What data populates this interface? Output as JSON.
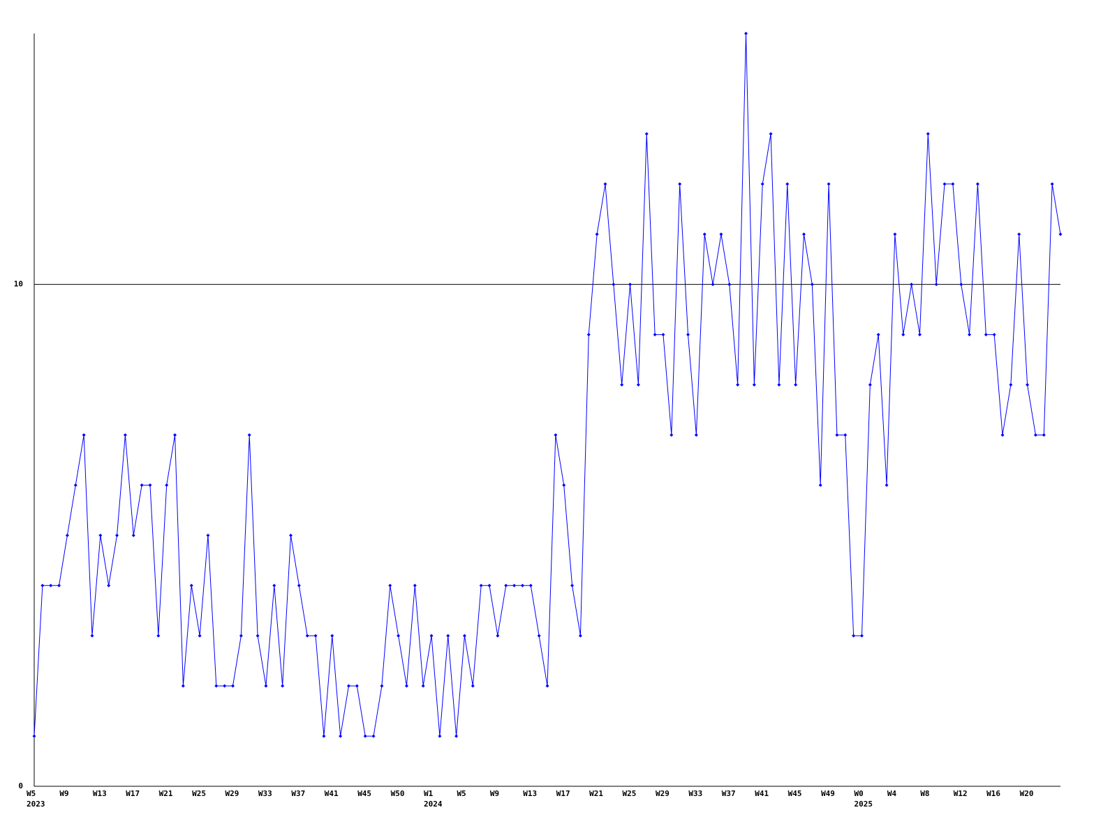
{
  "chart_data": {
    "type": "line",
    "categories": [
      "W5",
      null,
      null,
      null,
      "W9",
      null,
      null,
      null,
      "W13",
      null,
      null,
      null,
      "W17",
      null,
      null,
      null,
      "W21",
      null,
      null,
      null,
      "W25",
      null,
      null,
      null,
      "W29",
      null,
      null,
      null,
      "W33",
      null,
      null,
      null,
      "W37",
      null,
      null,
      null,
      "W41",
      null,
      null,
      null,
      "W45",
      null,
      null,
      null,
      "W50",
      null,
      null,
      null,
      "W1",
      null,
      null,
      null,
      "W5",
      null,
      null,
      null,
      "W9",
      null,
      null,
      null,
      "W13",
      null,
      null,
      null,
      "W17",
      null,
      null,
      null,
      "W21",
      null,
      null,
      null,
      "W25",
      null,
      null,
      null,
      "W29",
      null,
      null,
      null,
      "W33",
      null,
      null,
      null,
      "W37",
      null,
      null,
      null,
      "W41",
      null,
      null,
      null,
      "W45",
      null,
      null,
      null,
      "W49",
      null,
      null,
      null,
      "W0",
      null,
      null,
      null,
      "W4",
      null,
      null,
      null,
      "W8",
      null,
      null,
      null,
      "W12",
      null,
      null,
      null,
      "W16",
      null,
      null,
      null,
      "W20",
      null,
      null,
      null,
      null
    ],
    "years": [
      "2023",
      null,
      null,
      null,
      null,
      null,
      null,
      null,
      null,
      null,
      null,
      null,
      null,
      null,
      null,
      null,
      null,
      null,
      null,
      null,
      null,
      null,
      null,
      null,
      null,
      null,
      null,
      null,
      null,
      null,
      null,
      null,
      null,
      null,
      null,
      null,
      null,
      null,
      null,
      null,
      null,
      null,
      null,
      null,
      null,
      null,
      null,
      null,
      "2024",
      null,
      null,
      null,
      null,
      null,
      null,
      null,
      null,
      null,
      null,
      null,
      null,
      null,
      null,
      null,
      null,
      null,
      null,
      null,
      null,
      null,
      null,
      null,
      null,
      null,
      null,
      null,
      null,
      null,
      null,
      null,
      null,
      null,
      null,
      null,
      null,
      null,
      null,
      null,
      null,
      null,
      null,
      null,
      null,
      null,
      null,
      null,
      null,
      null,
      null,
      null,
      "2025",
      null,
      null,
      null,
      null,
      null,
      null,
      null,
      null,
      null,
      null,
      null,
      null,
      null,
      null,
      null,
      null,
      null,
      null,
      null,
      null,
      null,
      null,
      null,
      null
    ],
    "values": [
      1,
      4,
      4,
      4,
      5,
      6,
      7,
      3,
      5,
      4,
      5,
      7,
      5,
      6,
      6,
      3,
      6,
      7,
      2,
      4,
      3,
      5,
      2,
      2,
      2,
      3,
      7,
      3,
      2,
      4,
      2,
      5,
      4,
      3,
      3,
      1,
      3,
      1,
      2,
      2,
      1,
      1,
      2,
      4,
      3,
      2,
      4,
      2,
      3,
      1,
      3,
      1,
      3,
      2,
      4,
      4,
      3,
      4,
      4,
      4,
      4,
      3,
      2,
      7,
      6,
      4,
      3,
      9,
      11,
      12,
      10,
      8,
      10,
      8,
      13,
      9,
      9,
      7,
      12,
      9,
      7,
      11,
      10,
      11,
      10,
      8,
      15,
      8,
      12,
      13,
      8,
      12,
      8,
      11,
      10,
      6,
      12,
      7,
      7,
      3,
      3,
      8,
      9,
      6,
      11,
      9,
      10,
      9,
      13,
      10,
      12,
      12,
      10,
      9,
      12,
      9,
      9,
      7,
      8,
      11,
      8,
      7,
      7,
      12,
      11
    ],
    "color": "#0000ff",
    "ylim": [
      0,
      15
    ],
    "yticks": [
      0,
      10
    ],
    "grid": true
  }
}
